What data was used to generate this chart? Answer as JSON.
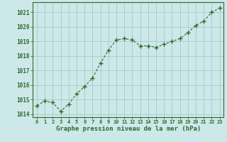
{
  "x": [
    0,
    1,
    2,
    3,
    4,
    5,
    6,
    7,
    8,
    9,
    10,
    11,
    12,
    13,
    14,
    15,
    16,
    17,
    18,
    19,
    20,
    21,
    22,
    23
  ],
  "y": [
    1014.6,
    1014.9,
    1014.8,
    1014.2,
    1014.7,
    1015.4,
    1015.9,
    1016.5,
    1017.5,
    1018.4,
    1019.1,
    1019.2,
    1019.1,
    1018.7,
    1018.7,
    1018.6,
    1018.8,
    1019.0,
    1019.2,
    1019.6,
    1020.1,
    1020.4,
    1021.0,
    1021.3
  ],
  "ylim": [
    1013.8,
    1021.7
  ],
  "yticks": [
    1014,
    1015,
    1016,
    1017,
    1018,
    1019,
    1020,
    1021
  ],
  "xlabel": "Graphe pression niveau de la mer (hPa)",
  "line_color": "#2d6a2d",
  "marker_color": "#2d6a2d",
  "bg_color": "#cce8e8",
  "grid_color": "#a8c8c8",
  "tick_label_color": "#2d6a2d",
  "xlabel_color": "#2d6a2d",
  "axis_color": "#2d6a2d"
}
